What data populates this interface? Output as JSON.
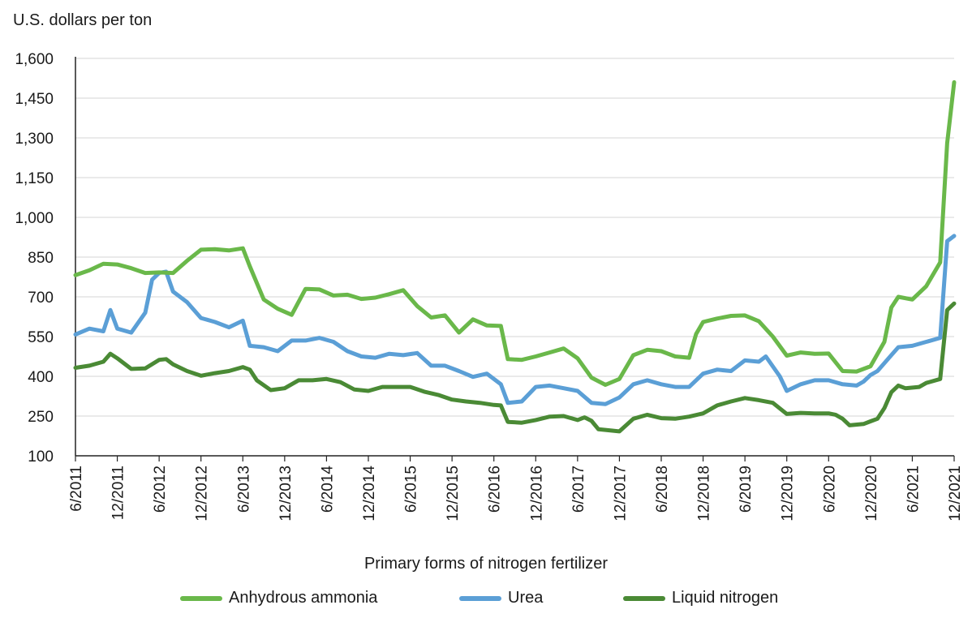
{
  "chart_data": {
    "type": "line",
    "ylabel": "U.S. dollars per ton",
    "xlabel": "",
    "ylim": [
      100,
      1600
    ],
    "yticks": [
      "100",
      "250",
      "400",
      "550",
      "700",
      "850",
      "1,000",
      "1,150",
      "1,300",
      "1,450",
      "1,600"
    ],
    "ytick_values": [
      100,
      250,
      400,
      550,
      700,
      850,
      1000,
      1150,
      1300,
      1450,
      1600
    ],
    "x_range": [
      "6/2011",
      "12/2021"
    ],
    "xticks": [
      "6/2011",
      "12/2011",
      "6/2012",
      "12/2012",
      "6/2013",
      "12/2013",
      "6/2014",
      "12/2014",
      "6/2015",
      "12/2015",
      "6/2016",
      "12/2016",
      "6/2017",
      "12/2017",
      "6/2018",
      "12/2018",
      "6/2019",
      "12/2019",
      "6/2020",
      "12/2020",
      "6/2021",
      "12/2021"
    ],
    "grid": "horizontal",
    "legend_title": "Primary forms of nitrogen fertilizer",
    "legend_position": "bottom",
    "series": [
      {
        "name": "Anhydrous ammonia",
        "color": "#6ab84a",
        "points": [
          [
            "6/2011",
            782
          ],
          [
            "8/2011",
            800
          ],
          [
            "10/2011",
            825
          ],
          [
            "12/2011",
            822
          ],
          [
            "2/2012",
            808
          ],
          [
            "4/2012",
            790
          ],
          [
            "6/2012",
            792
          ],
          [
            "8/2012",
            790
          ],
          [
            "10/2012",
            836
          ],
          [
            "12/2012",
            878
          ],
          [
            "2/2013",
            880
          ],
          [
            "4/2013",
            875
          ],
          [
            "6/2013",
            883
          ],
          [
            "7/2013",
            815
          ],
          [
            "9/2013",
            690
          ],
          [
            "11/2013",
            655
          ],
          [
            "1/2014",
            632
          ],
          [
            "3/2014",
            730
          ],
          [
            "5/2014",
            728
          ],
          [
            "7/2014",
            705
          ],
          [
            "9/2014",
            708
          ],
          [
            "11/2014",
            692
          ],
          [
            "1/2015",
            697
          ],
          [
            "3/2015",
            710
          ],
          [
            "5/2015",
            725
          ],
          [
            "7/2015",
            665
          ],
          [
            "9/2015",
            622
          ],
          [
            "11/2015",
            630
          ],
          [
            "1/2016",
            565
          ],
          [
            "3/2016",
            615
          ],
          [
            "5/2016",
            592
          ],
          [
            "7/2016",
            590
          ],
          [
            "8/2016",
            465
          ],
          [
            "10/2016",
            462
          ],
          [
            "12/2016",
            475
          ],
          [
            "2/2017",
            490
          ],
          [
            "4/2017",
            505
          ],
          [
            "6/2017",
            468
          ],
          [
            "8/2017",
            395
          ],
          [
            "10/2017",
            368
          ],
          [
            "12/2017",
            390
          ],
          [
            "2/2018",
            480
          ],
          [
            "4/2018",
            500
          ],
          [
            "6/2018",
            495
          ],
          [
            "8/2018",
            475
          ],
          [
            "10/2018",
            470
          ],
          [
            "11/2018",
            560
          ],
          [
            "12/2018",
            605
          ],
          [
            "2/2019",
            618
          ],
          [
            "4/2019",
            628
          ],
          [
            "6/2019",
            630
          ],
          [
            "8/2019",
            608
          ],
          [
            "10/2019",
            550
          ],
          [
            "12/2019",
            478
          ],
          [
            "2/2020",
            490
          ],
          [
            "4/2020",
            485
          ],
          [
            "6/2020",
            486
          ],
          [
            "8/2020",
            420
          ],
          [
            "10/2020",
            418
          ],
          [
            "12/2020",
            438
          ],
          [
            "2/2021",
            530
          ],
          [
            "3/2021",
            660
          ],
          [
            "4/2021",
            700
          ],
          [
            "6/2021",
            690
          ],
          [
            "8/2021",
            740
          ],
          [
            "10/2021",
            830
          ],
          [
            "11/2021",
            1280
          ],
          [
            "12/2021",
            1510
          ]
        ]
      },
      {
        "name": "Urea",
        "color": "#5b9fd6",
        "points": [
          [
            "6/2011",
            558
          ],
          [
            "8/2011",
            580
          ],
          [
            "10/2011",
            570
          ],
          [
            "11/2011",
            650
          ],
          [
            "12/2011",
            580
          ],
          [
            "2/2012",
            565
          ],
          [
            "4/2012",
            640
          ],
          [
            "5/2012",
            765
          ],
          [
            "6/2012",
            790
          ],
          [
            "7/2012",
            795
          ],
          [
            "8/2012",
            720
          ],
          [
            "10/2012",
            680
          ],
          [
            "12/2012",
            620
          ],
          [
            "2/2013",
            605
          ],
          [
            "4/2013",
            585
          ],
          [
            "6/2013",
            610
          ],
          [
            "7/2013",
            515
          ],
          [
            "9/2013",
            510
          ],
          [
            "11/2013",
            495
          ],
          [
            "1/2014",
            535
          ],
          [
            "3/2014",
            535
          ],
          [
            "5/2014",
            545
          ],
          [
            "7/2014",
            530
          ],
          [
            "9/2014",
            495
          ],
          [
            "11/2014",
            475
          ],
          [
            "1/2015",
            470
          ],
          [
            "3/2015",
            485
          ],
          [
            "5/2015",
            480
          ],
          [
            "7/2015",
            488
          ],
          [
            "9/2015",
            440
          ],
          [
            "11/2015",
            440
          ],
          [
            "1/2016",
            420
          ],
          [
            "3/2016",
            398
          ],
          [
            "5/2016",
            410
          ],
          [
            "7/2016",
            370
          ],
          [
            "8/2016",
            300
          ],
          [
            "10/2016",
            305
          ],
          [
            "12/2016",
            360
          ],
          [
            "2/2017",
            365
          ],
          [
            "4/2017",
            355
          ],
          [
            "6/2017",
            345
          ],
          [
            "8/2017",
            300
          ],
          [
            "10/2017",
            295
          ],
          [
            "12/2017",
            320
          ],
          [
            "2/2018",
            370
          ],
          [
            "4/2018",
            385
          ],
          [
            "6/2018",
            370
          ],
          [
            "8/2018",
            360
          ],
          [
            "10/2018",
            360
          ],
          [
            "12/2018",
            410
          ],
          [
            "2/2019",
            425
          ],
          [
            "4/2019",
            420
          ],
          [
            "6/2019",
            460
          ],
          [
            "8/2019",
            455
          ],
          [
            "9/2019",
            475
          ],
          [
            "11/2019",
            400
          ],
          [
            "12/2019",
            345
          ],
          [
            "2/2020",
            370
          ],
          [
            "4/2020",
            385
          ],
          [
            "6/2020",
            385
          ],
          [
            "8/2020",
            370
          ],
          [
            "10/2020",
            365
          ],
          [
            "11/2020",
            380
          ],
          [
            "12/2020",
            405
          ],
          [
            "1/2021",
            420
          ],
          [
            "3/2021",
            480
          ],
          [
            "4/2021",
            510
          ],
          [
            "6/2021",
            515
          ],
          [
            "8/2021",
            530
          ],
          [
            "10/2021",
            545
          ],
          [
            "11/2021",
            910
          ],
          [
            "12/2021",
            930
          ]
        ]
      },
      {
        "name": "Liquid nitrogen",
        "color": "#4a8a35",
        "points": [
          [
            "6/2011",
            432
          ],
          [
            "8/2011",
            440
          ],
          [
            "10/2011",
            455
          ],
          [
            "11/2011",
            485
          ],
          [
            "12/2011",
            468
          ],
          [
            "2/2012",
            428
          ],
          [
            "4/2012",
            430
          ],
          [
            "6/2012",
            462
          ],
          [
            "7/2012",
            465
          ],
          [
            "8/2012",
            445
          ],
          [
            "10/2012",
            420
          ],
          [
            "12/2012",
            402
          ],
          [
            "2/2013",
            412
          ],
          [
            "4/2013",
            420
          ],
          [
            "6/2013",
            435
          ],
          [
            "7/2013",
            425
          ],
          [
            "8/2013",
            385
          ],
          [
            "10/2013",
            348
          ],
          [
            "12/2013",
            355
          ],
          [
            "2/2014",
            385
          ],
          [
            "4/2014",
            385
          ],
          [
            "6/2014",
            390
          ],
          [
            "8/2014",
            378
          ],
          [
            "10/2014",
            350
          ],
          [
            "12/2014",
            345
          ],
          [
            "2/2015",
            360
          ],
          [
            "4/2015",
            360
          ],
          [
            "6/2015",
            360
          ],
          [
            "8/2015",
            342
          ],
          [
            "10/2015",
            330
          ],
          [
            "12/2015",
            312
          ],
          [
            "2/2016",
            305
          ],
          [
            "4/2016",
            300
          ],
          [
            "6/2016",
            292
          ],
          [
            "7/2016",
            290
          ],
          [
            "8/2016",
            228
          ],
          [
            "10/2016",
            225
          ],
          [
            "12/2016",
            235
          ],
          [
            "2/2017",
            248
          ],
          [
            "4/2017",
            250
          ],
          [
            "6/2017",
            235
          ],
          [
            "7/2017",
            245
          ],
          [
            "8/2017",
            232
          ],
          [
            "9/2017",
            200
          ],
          [
            "11/2017",
            195
          ],
          [
            "12/2017",
            192
          ],
          [
            "2/2018",
            240
          ],
          [
            "4/2018",
            255
          ],
          [
            "6/2018",
            242
          ],
          [
            "8/2018",
            240
          ],
          [
            "10/2018",
            248
          ],
          [
            "12/2018",
            260
          ],
          [
            "2/2019",
            290
          ],
          [
            "4/2019",
            305
          ],
          [
            "6/2019",
            318
          ],
          [
            "8/2019",
            310
          ],
          [
            "10/2019",
            300
          ],
          [
            "12/2019",
            258
          ],
          [
            "2/2020",
            262
          ],
          [
            "4/2020",
            260
          ],
          [
            "6/2020",
            260
          ],
          [
            "7/2020",
            255
          ],
          [
            "8/2020",
            240
          ],
          [
            "9/2020",
            215
          ],
          [
            "11/2020",
            220
          ],
          [
            "12/2020",
            230
          ],
          [
            "1/2021",
            240
          ],
          [
            "2/2021",
            280
          ],
          [
            "3/2021",
            340
          ],
          [
            "4/2021",
            365
          ],
          [
            "5/2021",
            355
          ],
          [
            "7/2021",
            360
          ],
          [
            "8/2021",
            375
          ],
          [
            "10/2021",
            390
          ],
          [
            "11/2021",
            650
          ],
          [
            "12/2021",
            675
          ]
        ]
      }
    ]
  }
}
